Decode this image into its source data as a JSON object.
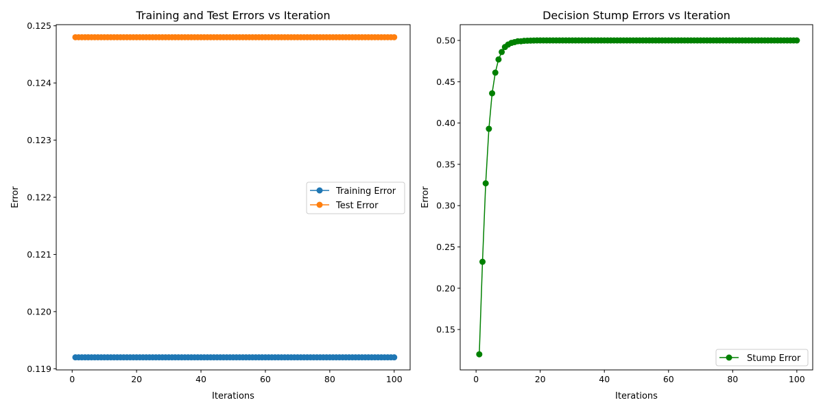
{
  "chart_data": [
    {
      "type": "line",
      "title": "Training and Test Errors vs Iteration",
      "xlabel": "Iterations",
      "ylabel": "Error",
      "xlim": [
        -4.95,
        104.95
      ],
      "ylim": [
        0.11898,
        0.12502
      ],
      "xticks": [
        0,
        20,
        40,
        60,
        80,
        100
      ],
      "yticks": [
        0.119,
        0.12,
        0.121,
        0.122,
        0.123,
        0.124,
        0.125
      ],
      "ytick_labels": [
        "0.119",
        "0.120",
        "0.121",
        "0.122",
        "0.123",
        "0.124",
        "0.125"
      ],
      "x": {
        "start": 1,
        "end": 100,
        "step": 1
      },
      "legend": "center-right",
      "grid": false,
      "series": [
        {
          "name": "Training Error",
          "color": "#1f77b4",
          "marker": "circle",
          "constant": 0.1192
        },
        {
          "name": "Test Error",
          "color": "#ff7f0e",
          "marker": "circle",
          "constant": 0.1248
        }
      ]
    },
    {
      "type": "line",
      "title": "Decision Stump Errors vs Iteration",
      "xlabel": "Iterations",
      "ylabel": "Error",
      "xlim": [
        -4.95,
        104.95
      ],
      "ylim": [
        0.1011,
        0.5191
      ],
      "xticks": [
        0,
        20,
        40,
        60,
        80,
        100
      ],
      "yticks": [
        0.15,
        0.2,
        0.25,
        0.3,
        0.35,
        0.4,
        0.45,
        0.5
      ],
      "ytick_labels": [
        "0.15",
        "0.20",
        "0.25",
        "0.30",
        "0.35",
        "0.40",
        "0.45",
        "0.50"
      ],
      "x": {
        "start": 1,
        "end": 100,
        "step": 1
      },
      "legend": "lower-right",
      "grid": false,
      "series": [
        {
          "name": "Stump Error",
          "color": "#008000",
          "marker": "circle",
          "values_head": [
            0.12,
            0.232,
            0.327,
            0.393,
            0.436,
            0.461,
            0.477,
            0.486,
            0.492,
            0.495,
            0.497,
            0.498,
            0.499,
            0.499,
            0.4995,
            0.4997,
            0.4998,
            0.4999
          ],
          "values_tail": 0.5
        }
      ]
    }
  ]
}
